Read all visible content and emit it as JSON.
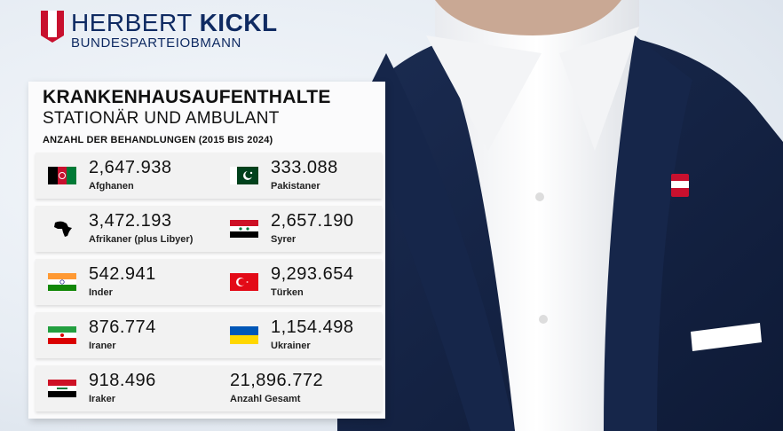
{
  "brand": {
    "name_light": "HERBERT ",
    "name_bold": "KICKL",
    "subtitle": "BUNDESPARTEIOBMANN"
  },
  "card": {
    "title": "KRANKENHAUSAUFENTHALTE",
    "subtitle": "STATIONÄR UND AMBULANT",
    "caption": "ANZAHL DER BEHANDLUNGEN (2015 BIS 2024)",
    "rows": [
      {
        "left": {
          "value": "2,647.938",
          "label": "Afghanen",
          "flag": "afghanistan-flag-icon"
        },
        "right": {
          "value": "333.088",
          "label": "Pakistaner",
          "flag": "pakistan-flag-icon"
        }
      },
      {
        "left": {
          "value": "3,472.193",
          "label": "Afrikaner (plus Libyer)",
          "flag": "africa-map-icon"
        },
        "right": {
          "value": "2,657.190",
          "label": "Syrer",
          "flag": "syria-flag-icon"
        }
      },
      {
        "left": {
          "value": "542.941",
          "label": "Inder",
          "flag": "india-flag-icon"
        },
        "right": {
          "value": "9,293.654",
          "label": "Türken",
          "flag": "turkey-flag-icon"
        }
      },
      {
        "left": {
          "value": "876.774",
          "label": "Iraner",
          "flag": "iran-flag-icon"
        },
        "right": {
          "value": "1,154.498",
          "label": "Ukrainer",
          "flag": "ukraine-flag-icon"
        }
      },
      {
        "left": {
          "value": "918.496",
          "label": "Iraker",
          "flag": "iraq-flag-icon"
        },
        "right": {
          "value": "21,896.772",
          "label": "Anzahl Gesamt"
        }
      }
    ]
  },
  "colors": {
    "brand_navy": "#0f2a62",
    "brand_red": "#c8102e"
  }
}
